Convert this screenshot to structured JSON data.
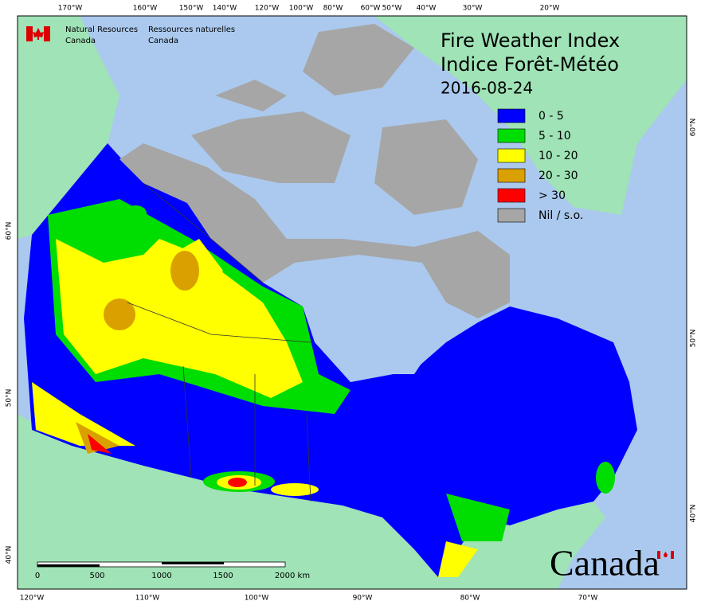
{
  "header": {
    "agency_en": [
      "Natural Resources",
      "Canada"
    ],
    "agency_fr": [
      "Ressources naturelles",
      "Canada"
    ]
  },
  "title": {
    "line1": "Fire Weather Index",
    "line2": "Indice Forêt-Météo",
    "date": "2016-08-24"
  },
  "legend": [
    {
      "label": "0 - 5",
      "color": "#0000ff"
    },
    {
      "label": "5 - 10",
      "color": "#00dd00"
    },
    {
      "label": "10 - 20",
      "color": "#ffff00"
    },
    {
      "label": "20 - 30",
      "color": "#d9a000"
    },
    {
      "label": "> 30",
      "color": "#ff0000"
    },
    {
      "label": "Nil / s.o.",
      "color": "#a6a6a6"
    }
  ],
  "top_longitudes": [
    "170°W",
    "160°W",
    "150°W",
    "140°W",
    "120°W",
    "100°W",
    "80°W",
    "60°W",
    "50°W",
    "40°W",
    "30°W",
    "20°W"
  ],
  "bottom_longitudes": [
    "120°W",
    "110°W",
    "100°W",
    "90°W",
    "80°W",
    "70°W"
  ],
  "left_latitudes": [
    "60°N",
    "50°N",
    "40°N"
  ],
  "right_latitudes": [
    "60°N",
    "50°N",
    "40°N"
  ],
  "scale_bar": [
    "0",
    "500",
    "1000",
    "1500",
    "2000 km"
  ],
  "wordmark": "Canada"
}
